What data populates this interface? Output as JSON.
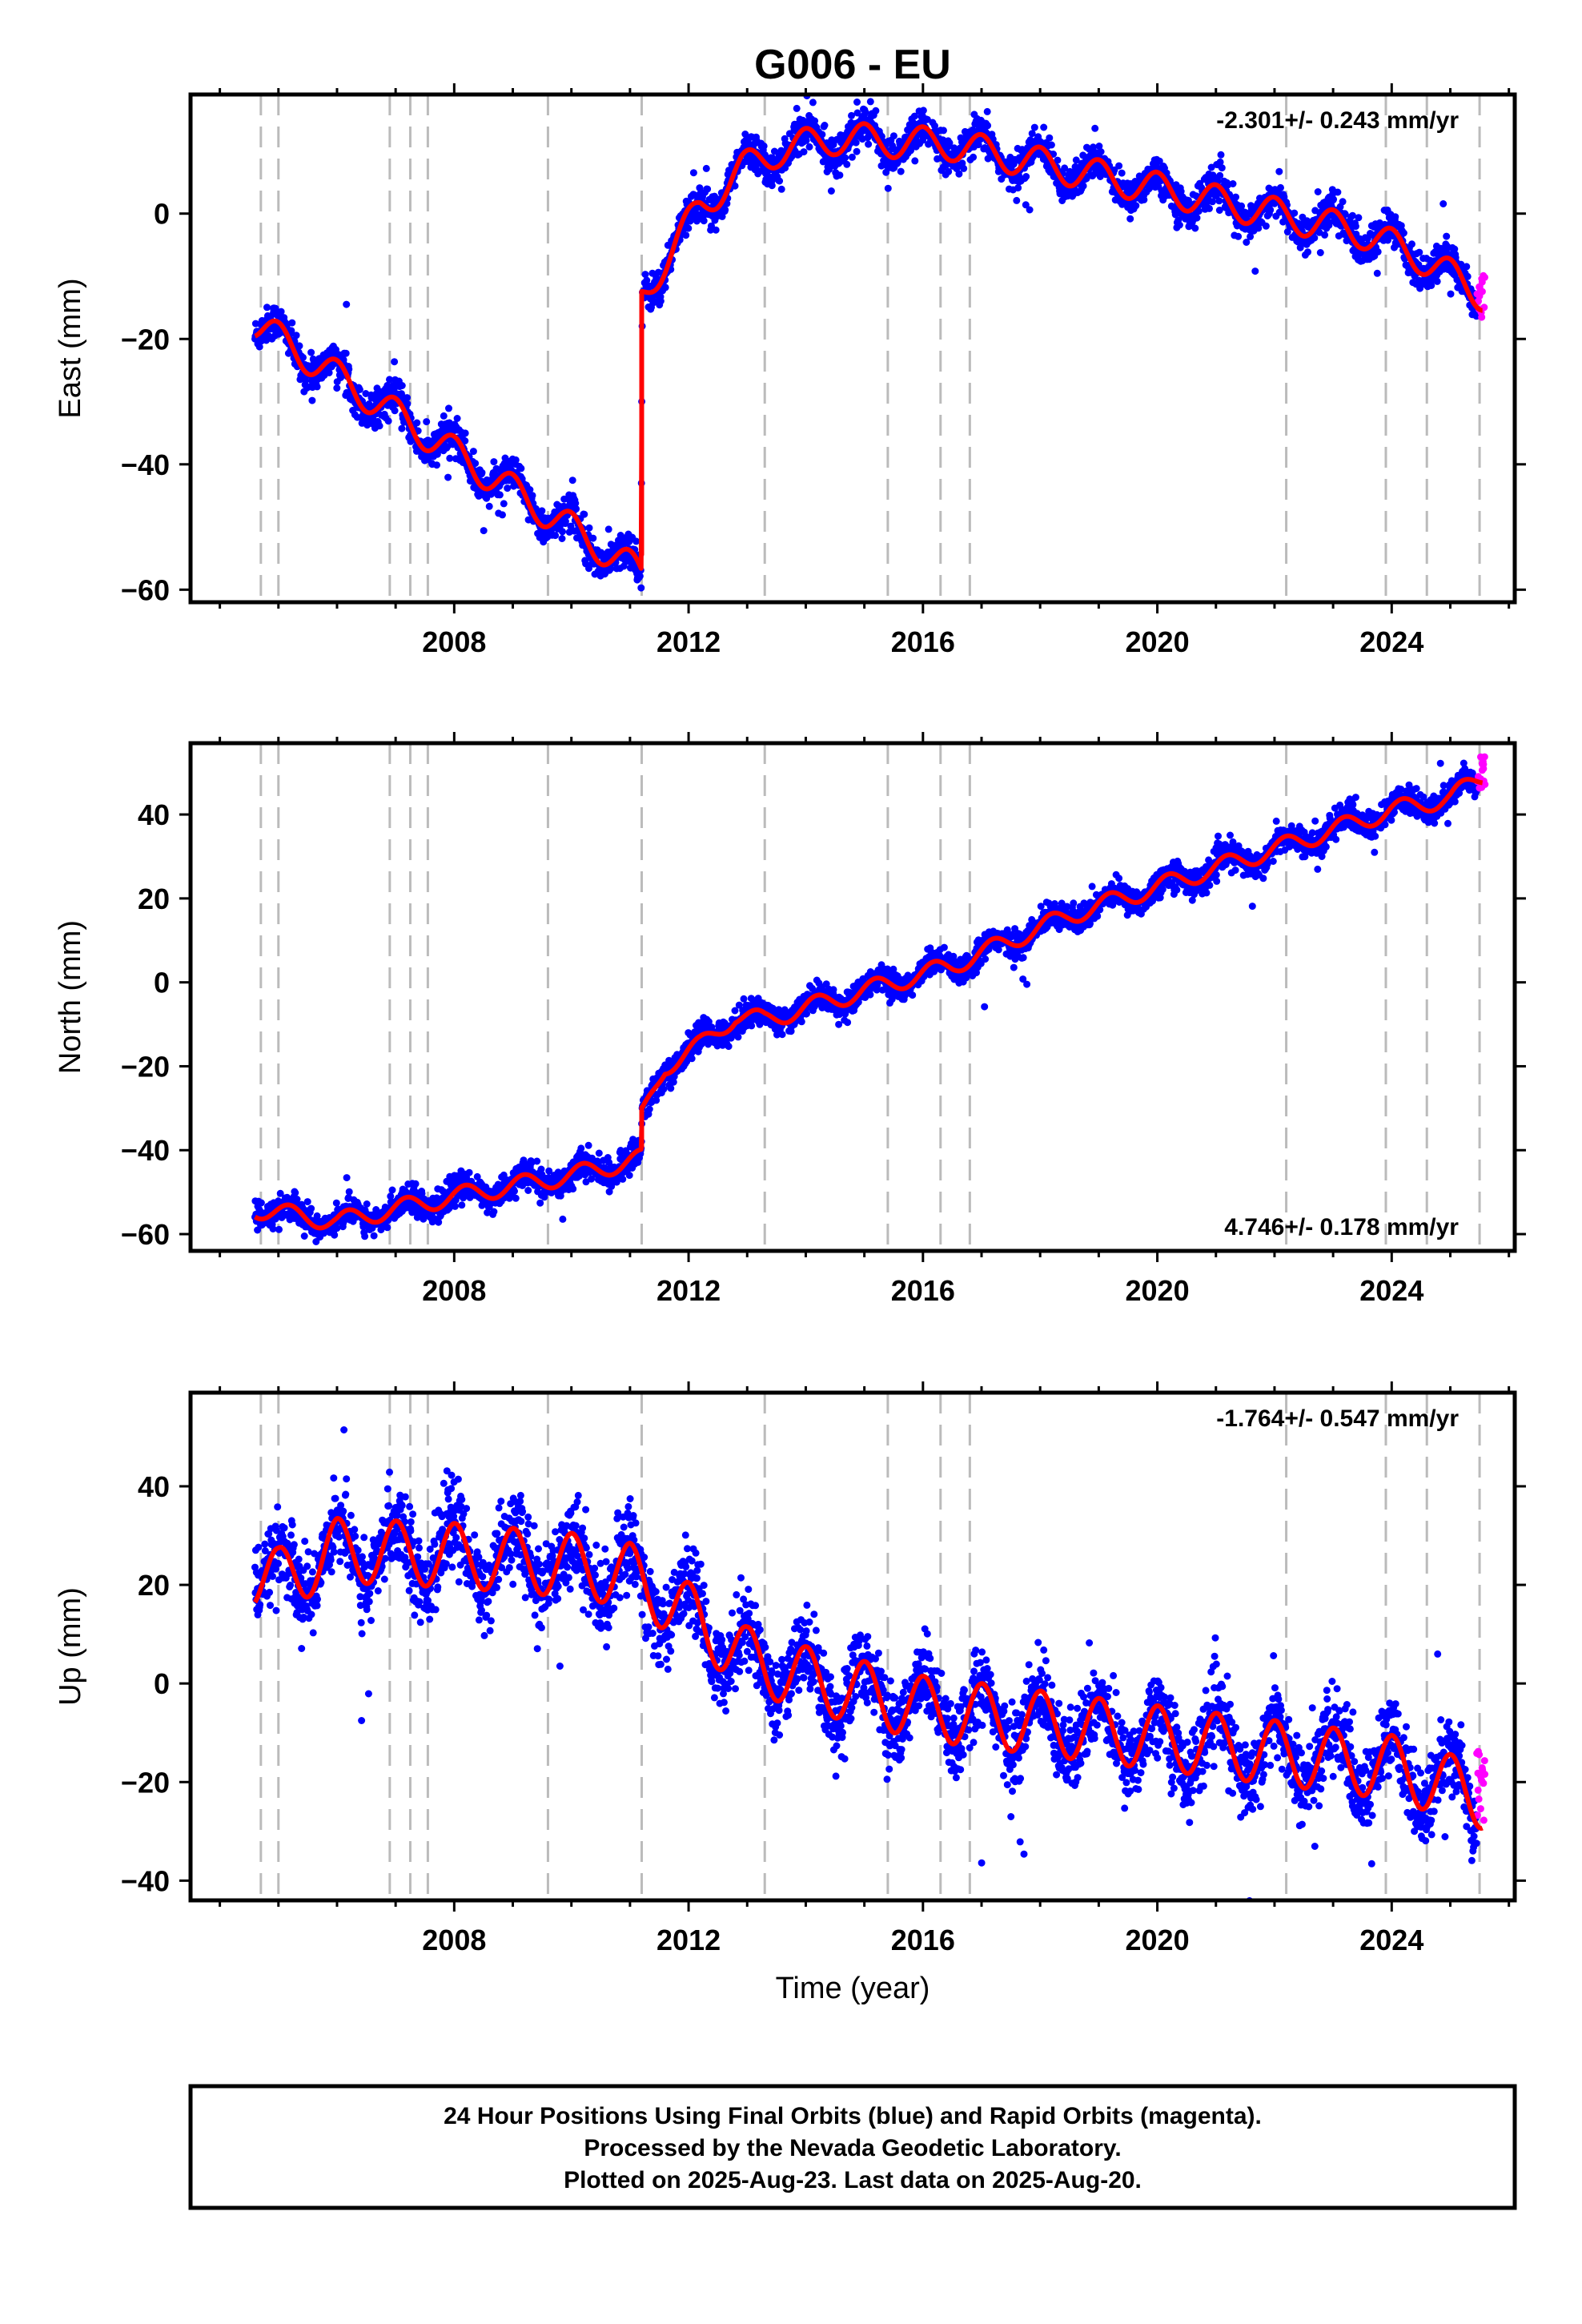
{
  "title": "G006 - EU",
  "footer": [
    "24 Hour Positions Using Final Orbits (blue) and Rapid Orbits (magenta).",
    "Processed by the Nevada Geodetic Laboratory.",
    "Plotted on 2025-Aug-23. Last data on 2025-Aug-20."
  ],
  "colors": {
    "final": "#0000ff",
    "rapid": "#ff00ff",
    "model": "#ff0000",
    "event_line": "#bbbbbb"
  },
  "chart_data": [
    {
      "type": "scatter",
      "name": "east",
      "ylabel": "East (mm)",
      "xlabel": "",
      "rate_label": "-2.301+/- 0.243 mm/yr",
      "rate_position": "top-right",
      "xlim": [
        2003.5,
        2026.1
      ],
      "ylim": [
        -62,
        19
      ],
      "xticks": [
        2008,
        2012,
        2016,
        2020,
        2024
      ],
      "yticks": [
        -60,
        -40,
        -20,
        0
      ],
      "event_lines": [
        2004.7,
        2005.0,
        2006.9,
        2007.25,
        2007.55,
        2009.6,
        2011.2,
        2013.3,
        2015.4,
        2016.3,
        2016.8,
        2022.2,
        2023.9,
        2024.6,
        2025.5
      ],
      "model": {
        "breaks": [
          2011.2
        ],
        "anchors": [
          [
            2004.6,
            -17.5
          ],
          [
            2011.19,
            -57.5
          ],
          [
            2011.21,
            -13
          ],
          [
            2011.7,
            -6
          ],
          [
            2012.2,
            1
          ],
          [
            2012.9,
            7
          ],
          [
            2013.5,
            10
          ],
          [
            2014.5,
            12
          ],
          [
            2016.5,
            11
          ],
          [
            2018.0,
            8
          ],
          [
            2020.0,
            4
          ],
          [
            2022.0,
            0
          ],
          [
            2023.5,
            -3
          ],
          [
            2024.5,
            -7
          ],
          [
            2025.55,
            -13
          ]
        ],
        "seasonal_amp": 2.6,
        "seasonal_phase": 1.6
      },
      "scatter_noise": 1.4,
      "rapid": {
        "x_start": 2025.45,
        "x_end": 2025.6,
        "y_center": -13,
        "y_spread": 4
      }
    },
    {
      "type": "scatter",
      "name": "north",
      "ylabel": "North (mm)",
      "xlabel": "",
      "rate_label": "4.746+/- 0.178 mm/yr",
      "rate_position": "bottom-right",
      "xlim": [
        2003.5,
        2026.1
      ],
      "ylim": [
        -64,
        57
      ],
      "xticks": [
        2008,
        2012,
        2016,
        2020,
        2024
      ],
      "yticks": [
        -60,
        -40,
        -20,
        0,
        20,
        40
      ],
      "event_lines": [
        2004.7,
        2005.0,
        2006.9,
        2007.25,
        2007.55,
        2009.6,
        2011.2,
        2013.3,
        2015.4,
        2016.3,
        2016.8,
        2022.2,
        2023.9,
        2024.6,
        2025.5
      ],
      "model": {
        "breaks": [
          2011.2
        ],
        "anchors": [
          [
            2004.6,
            -54
          ],
          [
            2006.0,
            -57
          ],
          [
            2008.0,
            -51
          ],
          [
            2010.0,
            -46
          ],
          [
            2011.19,
            -42
          ],
          [
            2011.21,
            -32
          ],
          [
            2011.6,
            -20
          ],
          [
            2012.2,
            -15
          ],
          [
            2012.8,
            -8
          ],
          [
            2013.3,
            -9
          ],
          [
            2014.5,
            -4
          ],
          [
            2016.5,
            4
          ],
          [
            2018.5,
            16
          ],
          [
            2020.5,
            25
          ],
          [
            2022.5,
            34
          ],
          [
            2024.0,
            41
          ],
          [
            2025.0,
            44
          ],
          [
            2025.55,
            49
          ]
        ],
        "seasonal_amp": 2.2,
        "seasonal_phase": 0.4
      },
      "scatter_noise": 1.6,
      "rapid": {
        "x_start": 2025.45,
        "x_end": 2025.6,
        "y_center": 50,
        "y_spread": 4
      }
    },
    {
      "type": "scatter",
      "name": "up",
      "ylabel": "Up (mm)",
      "xlabel": "Time (year)",
      "rate_label": "-1.764+/- 0.547 mm/yr",
      "rate_position": "top-right",
      "xlim": [
        2003.5,
        2026.1
      ],
      "ylim": [
        -44,
        59
      ],
      "xticks": [
        2008,
        2012,
        2016,
        2020,
        2024
      ],
      "yticks": [
        -40,
        -20,
        0,
        20,
        40
      ],
      "event_lines": [
        2004.7,
        2005.0,
        2006.9,
        2007.25,
        2007.55,
        2009.6,
        2011.2,
        2013.3,
        2015.4,
        2016.3,
        2016.8,
        2022.2,
        2023.9,
        2024.6,
        2025.5
      ],
      "model": {
        "breaks": [],
        "anchors": [
          [
            2004.6,
            22
          ],
          [
            2005.0,
            21
          ],
          [
            2006.0,
            27
          ],
          [
            2008.0,
            26
          ],
          [
            2010.0,
            24
          ],
          [
            2011.0,
            22
          ],
          [
            2012.0,
            14
          ],
          [
            2013.0,
            5
          ],
          [
            2014.0,
            1
          ],
          [
            2016.0,
            -5
          ],
          [
            2018.0,
            -8
          ],
          [
            2020.0,
            -11
          ],
          [
            2022.0,
            -14
          ],
          [
            2024.0,
            -17
          ],
          [
            2025.55,
            -23
          ]
        ],
        "seasonal_amp": 6.5,
        "seasonal_phase": 1.5
      },
      "scatter_noise": 4.0,
      "rapid": {
        "x_start": 2025.45,
        "x_end": 2025.6,
        "y_center": -22,
        "y_spread": 9
      }
    }
  ]
}
